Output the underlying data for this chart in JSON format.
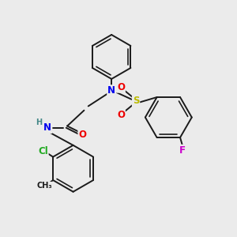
{
  "bg_color": "#ebebeb",
  "bond_color": "#1a1a1a",
  "bond_width": 1.4,
  "atom_colors": {
    "N": "#0000ee",
    "O": "#ee0000",
    "S": "#bbbb00",
    "Cl": "#22aa22",
    "F": "#cc00cc",
    "H": "#448888",
    "C": "#1a1a1a"
  },
  "font_size": 8.5
}
